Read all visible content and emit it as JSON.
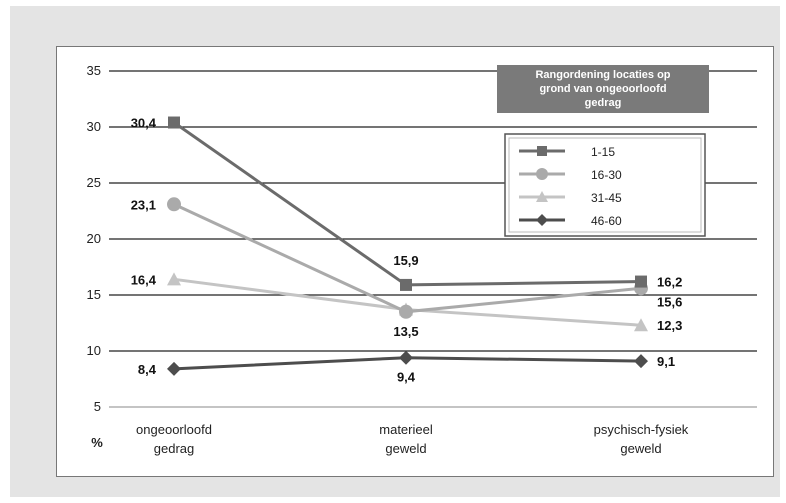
{
  "chart_data": {
    "type": "line",
    "categories": [
      [
        "ongeoorloofd",
        "gedrag"
      ],
      [
        "materieel",
        "geweld"
      ],
      [
        "psychisch-fysiek",
        "geweld"
      ]
    ],
    "ylabel": "%",
    "ylim": [
      5,
      35
    ],
    "yticks": [
      5,
      10,
      15,
      20,
      25,
      30,
      35
    ],
    "grid": true,
    "legend": {
      "title": [
        "Rangordening locaties op",
        "grond van ongeoorloofd",
        "gedrag"
      ],
      "placement": "top-right"
    },
    "series": [
      {
        "name": "1-15",
        "values": [
          30.4,
          15.9,
          16.2
        ],
        "labels": [
          "30,4",
          "15,9",
          "16,2"
        ],
        "color": "#6b6b6b",
        "marker": "square",
        "label_pos": [
          "left",
          "above",
          "right"
        ]
      },
      {
        "name": "16-30",
        "values": [
          23.1,
          13.5,
          15.6
        ],
        "labels": [
          "23,1",
          "13,5",
          "15,6"
        ],
        "color": "#aaaaaa",
        "marker": "circle",
        "label_pos": [
          "left",
          "below",
          "below-right"
        ]
      },
      {
        "name": "31-45",
        "values": [
          16.4,
          13.7,
          12.3
        ],
        "labels": [
          "16,4",
          "",
          "12,3"
        ],
        "color": "#c4c4c4",
        "marker": "triangle",
        "label_pos": [
          "left",
          "none",
          "right"
        ]
      },
      {
        "name": "46-60",
        "values": [
          8.4,
          9.4,
          9.1
        ],
        "labels": [
          "8,4",
          "9,4",
          "9,1"
        ],
        "color": "#4d4d4d",
        "marker": "diamond",
        "label_pos": [
          "left",
          "below",
          "right"
        ]
      }
    ]
  },
  "colors": {
    "frame": "#e4e4e4",
    "legend_title_bg": "#7a7a7a",
    "gridline": "#222222"
  }
}
